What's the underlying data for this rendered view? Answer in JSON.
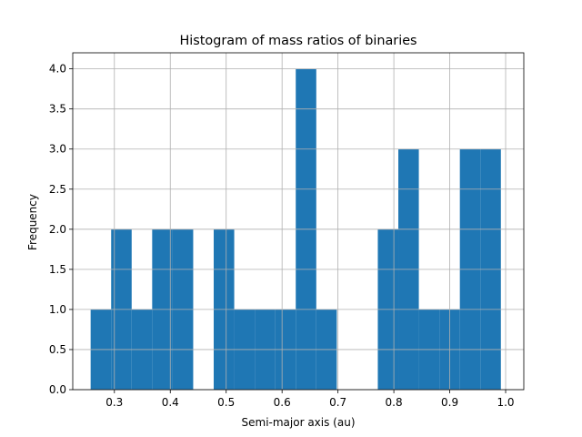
{
  "chart_data": {
    "type": "bar",
    "title": "Histogram of mass ratios of binaries",
    "xlabel": "Semi-major axis (au)",
    "ylabel": "Frequency",
    "xlim": [
      0.2255,
      1.0325
    ],
    "ylim": [
      0,
      4.2
    ],
    "grid": true,
    "bar_color": "#1f77b4",
    "grid_color": "#b0b0b0",
    "bin_edges": [
      0.2575,
      0.2942,
      0.3309,
      0.3676,
      0.4043,
      0.441,
      0.4777,
      0.5144,
      0.5511,
      0.5878,
      0.6245,
      0.6612,
      0.6979,
      0.7346,
      0.7713,
      0.808,
      0.8447,
      0.8814,
      0.9181,
      0.9548,
      0.9915
    ],
    "values": [
      1,
      2,
      1,
      2,
      2,
      0,
      2,
      1,
      1,
      1,
      4,
      1,
      0,
      0,
      2,
      3,
      1,
      1,
      3,
      3
    ],
    "x_ticks": [
      {
        "value": 0.3,
        "label": "0.3"
      },
      {
        "value": 0.4,
        "label": "0.4"
      },
      {
        "value": 0.5,
        "label": "0.5"
      },
      {
        "value": 0.6,
        "label": "0.6"
      },
      {
        "value": 0.7,
        "label": "0.7"
      },
      {
        "value": 0.8,
        "label": "0.8"
      },
      {
        "value": 0.9,
        "label": "0.9"
      },
      {
        "value": 1.0,
        "label": "1.0"
      }
    ],
    "y_ticks": [
      {
        "value": 0.0,
        "label": "0.0"
      },
      {
        "value": 0.5,
        "label": "0.5"
      },
      {
        "value": 1.0,
        "label": "1.0"
      },
      {
        "value": 1.5,
        "label": "1.5"
      },
      {
        "value": 2.0,
        "label": "2.0"
      },
      {
        "value": 2.5,
        "label": "2.5"
      },
      {
        "value": 3.0,
        "label": "3.0"
      },
      {
        "value": 3.5,
        "label": "3.5"
      },
      {
        "value": 4.0,
        "label": "4.0"
      }
    ]
  }
}
